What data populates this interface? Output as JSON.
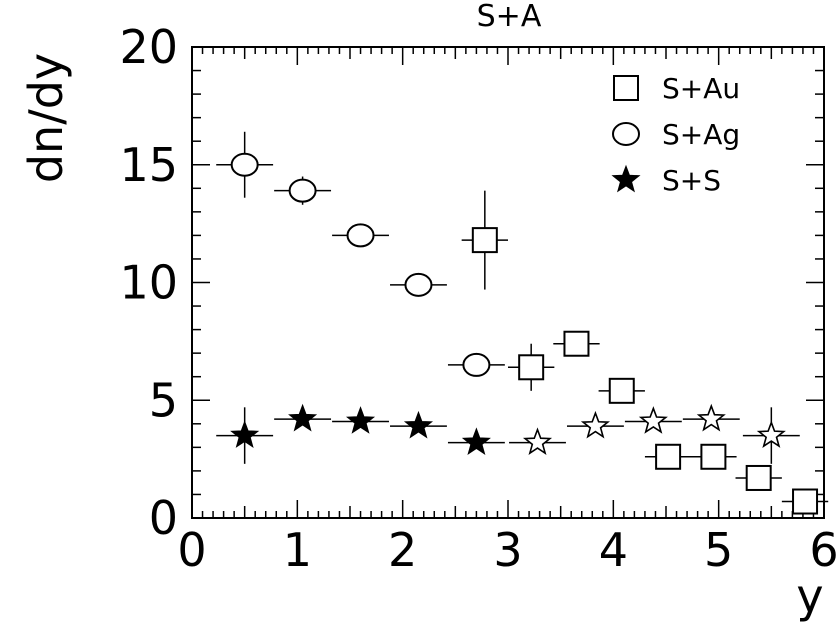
{
  "chart_data": {
    "type": "scatter",
    "title": "S+A",
    "xlabel": "y",
    "ylabel": "dn/dy",
    "xlim": [
      0,
      6
    ],
    "ylim": [
      0,
      20
    ],
    "x_ticks": [
      "0",
      "1",
      "2",
      "3",
      "4",
      "5",
      "6"
    ],
    "y_ticks": [
      "0",
      "5",
      "10",
      "15",
      "20"
    ],
    "grid": false,
    "legend": "top-right",
    "series": [
      {
        "name": "S+Au",
        "marker": "square",
        "filled": false,
        "points": [
          {
            "x": 2.78,
            "y": 11.8,
            "xerr": 0.22,
            "yerr": 2.1
          },
          {
            "x": 3.22,
            "y": 6.4,
            "xerr": 0.22,
            "yerr": 1.0
          },
          {
            "x": 3.65,
            "y": 7.4,
            "xerr": 0.22,
            "yerr": 0.5
          },
          {
            "x": 4.08,
            "y": 5.4,
            "xerr": 0.22,
            "yerr": 0.2
          },
          {
            "x": 4.52,
            "y": 2.6,
            "xerr": 0.22,
            "yerr": 0.2
          },
          {
            "x": 4.95,
            "y": 2.6,
            "xerr": 0.22,
            "yerr": 0.2
          },
          {
            "x": 5.38,
            "y": 1.7,
            "xerr": 0.22,
            "yerr": 0.2
          },
          {
            "x": 5.82,
            "y": 0.7,
            "xerr": 0.22,
            "yerr": 0.2
          }
        ]
      },
      {
        "name": "S+Ag",
        "marker": "circle",
        "filled": false,
        "points": [
          {
            "x": 0.5,
            "y": 15.0,
            "xerr": 0.27,
            "yerr": 1.4
          },
          {
            "x": 1.05,
            "y": 13.9,
            "xerr": 0.27,
            "yerr": 0.6
          },
          {
            "x": 1.6,
            "y": 12.0,
            "xerr": 0.27,
            "yerr": 0.0
          },
          {
            "x": 2.15,
            "y": 9.9,
            "xerr": 0.27,
            "yerr": 0.0
          },
          {
            "x": 2.7,
            "y": 6.5,
            "xerr": 0.27,
            "yerr": 0.0
          }
        ]
      },
      {
        "name": "S+S",
        "marker": "star",
        "filled": true,
        "points": [
          {
            "x": 0.5,
            "y": 3.5,
            "xerr": 0.27,
            "yerr": 1.2
          },
          {
            "x": 1.05,
            "y": 4.2,
            "xerr": 0.27,
            "yerr": 0.0
          },
          {
            "x": 1.6,
            "y": 4.1,
            "xerr": 0.27,
            "yerr": 0.0
          },
          {
            "x": 2.15,
            "y": 3.9,
            "xerr": 0.27,
            "yerr": 0.0
          },
          {
            "x": 2.7,
            "y": 3.2,
            "xerr": 0.27,
            "yerr": 0.0
          }
        ]
      },
      {
        "name": "",
        "marker": "star",
        "filled": false,
        "points": [
          {
            "x": 3.28,
            "y": 3.2,
            "xerr": 0.27,
            "yerr": 0.0
          },
          {
            "x": 3.83,
            "y": 3.9,
            "xerr": 0.27,
            "yerr": 0.0
          },
          {
            "x": 4.38,
            "y": 4.1,
            "xerr": 0.27,
            "yerr": 0.0
          },
          {
            "x": 4.93,
            "y": 4.2,
            "xerr": 0.27,
            "yerr": 0.0
          },
          {
            "x": 5.5,
            "y": 3.5,
            "xerr": 0.27,
            "yerr": 1.2
          }
        ]
      }
    ]
  }
}
